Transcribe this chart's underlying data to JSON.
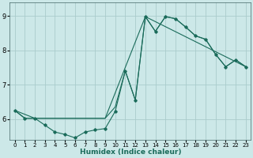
{
  "bg_color": "#cce8e8",
  "grid_color": "#aacccc",
  "line_color": "#1a6b5a",
  "xlabel": "Humidex (Indice chaleur)",
  "ylim": [
    5.4,
    9.4
  ],
  "xlim": [
    -0.5,
    23.5
  ],
  "yticks": [
    6,
    7,
    8,
    9
  ],
  "xticks": [
    0,
    1,
    2,
    3,
    4,
    5,
    6,
    7,
    8,
    9,
    10,
    11,
    12,
    13,
    14,
    15,
    16,
    17,
    18,
    19,
    20,
    21,
    22,
    23
  ],
  "line1_x": [
    0,
    1,
    2,
    3,
    4,
    5,
    6,
    7,
    8,
    9,
    10,
    11,
    12,
    13,
    14,
    15,
    16,
    17,
    18,
    19,
    20,
    21,
    22,
    23
  ],
  "line1_y": [
    6.25,
    6.02,
    6.02,
    5.82,
    5.62,
    5.55,
    5.45,
    5.62,
    5.68,
    5.72,
    6.22,
    7.4,
    6.55,
    8.98,
    8.55,
    8.98,
    8.92,
    8.68,
    8.42,
    8.32,
    7.88,
    7.52,
    7.72,
    7.52
  ],
  "line2_x": [
    0,
    1,
    2,
    3,
    9,
    10,
    11,
    12,
    13,
    14,
    15,
    16,
    17,
    18,
    19,
    20,
    21,
    22,
    23
  ],
  "line2_y": [
    6.25,
    6.02,
    6.02,
    6.02,
    6.02,
    6.35,
    7.4,
    6.55,
    8.98,
    8.55,
    8.98,
    8.92,
    8.68,
    8.42,
    8.32,
    7.88,
    7.52,
    7.72,
    7.52
  ],
  "line3_x": [
    0,
    2,
    3,
    9,
    13,
    23
  ],
  "line3_y": [
    6.25,
    6.02,
    6.02,
    6.02,
    8.98,
    7.52
  ]
}
